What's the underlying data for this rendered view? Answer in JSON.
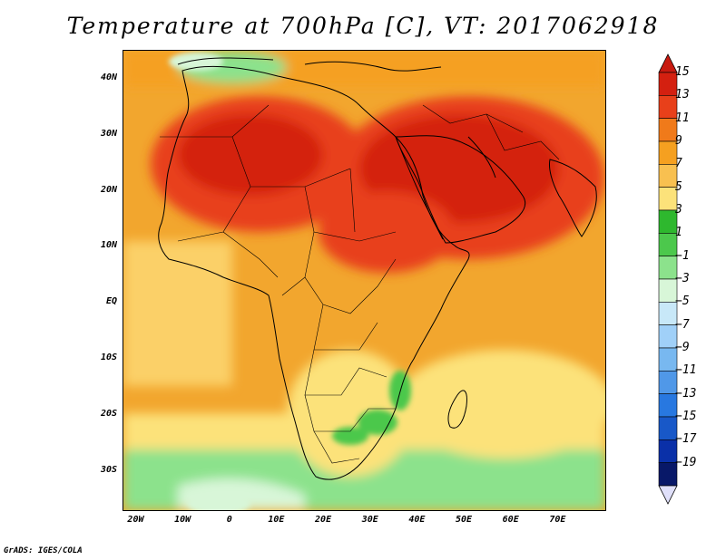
{
  "title": "Temperature at 700hPa [C], VT: 2017062918",
  "credit": "GrADS: IGES/COLA",
  "axes": {
    "lat_labels": [
      "40N",
      "30N",
      "20N",
      "10N",
      "EQ",
      "10S",
      "20S",
      "30S"
    ],
    "lat_values": [
      40,
      30,
      20,
      10,
      0,
      -10,
      -20,
      -30
    ],
    "lon_labels": [
      "20W",
      "10W",
      "0",
      "10E",
      "20E",
      "30E",
      "40E",
      "50E",
      "60E",
      "70E"
    ],
    "lon_values": [
      -20,
      -10,
      0,
      10,
      20,
      30,
      40,
      50,
      60,
      70
    ]
  },
  "colorbar": {
    "labels": [
      "15",
      "13",
      "11",
      "9",
      "7",
      "5",
      "3",
      "1",
      "−1",
      "−3",
      "−5",
      "−7",
      "−9",
      "−11",
      "−13",
      "−15",
      "−17",
      "−19"
    ],
    "colors": [
      "#d42010",
      "#e8401a",
      "#f07a1a",
      "#f5a020",
      "#f8c050",
      "#fce27a",
      "#2eb82e",
      "#4cc84c",
      "#8ce28c",
      "#d8f6d8",
      "#c8e8f8",
      "#a0d0f8",
      "#78b8f0",
      "#5098e8",
      "#2878e0",
      "#1858c8",
      "#0a30a8",
      "#081868"
    ],
    "top_arrow_color": "#c81a10",
    "bottom_arrow_color": "#e0e0fa"
  }
}
